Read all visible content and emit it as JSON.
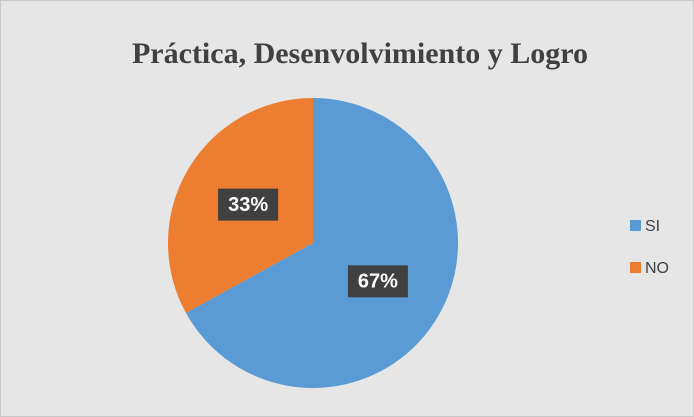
{
  "chart_data": {
    "type": "pie",
    "title": "Práctica, Desenvolvimiento y Logro",
    "categories": [
      "SI",
      "NO"
    ],
    "values": [
      67,
      33
    ],
    "value_labels": [
      "67%",
      "33%"
    ],
    "colors": [
      "#5b9bd5",
      "#ed7d31"
    ],
    "legend": "right"
  }
}
